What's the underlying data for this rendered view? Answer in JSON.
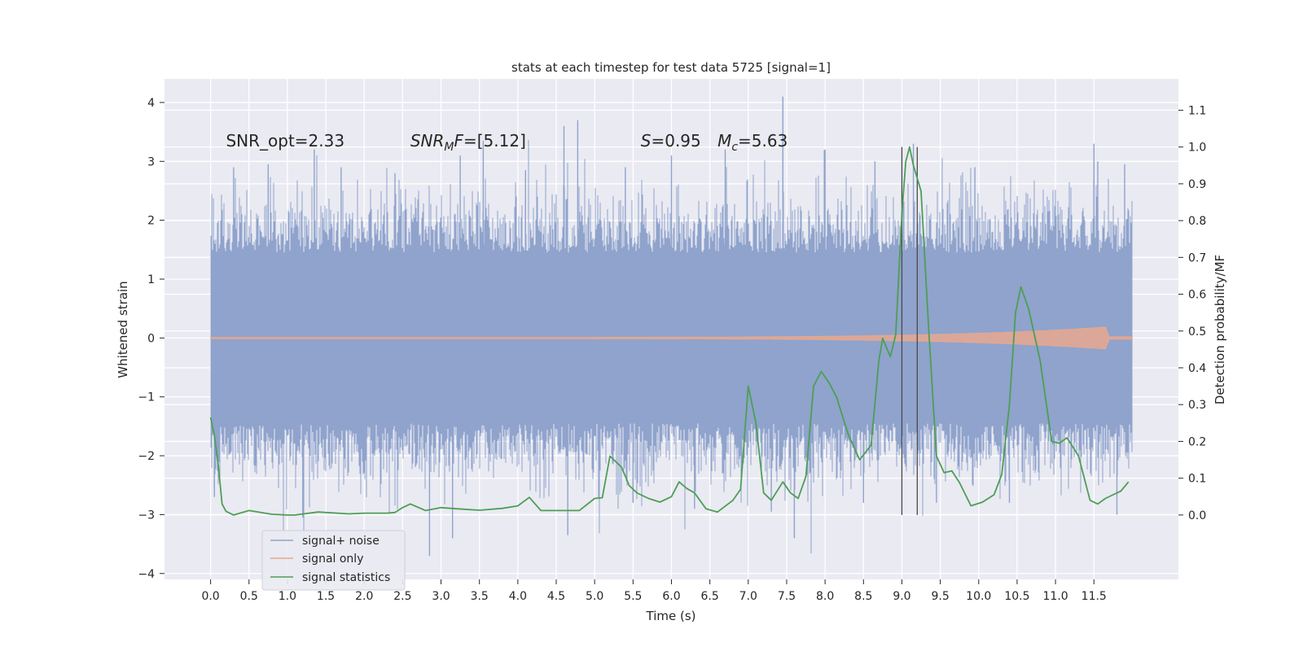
{
  "chart_data": {
    "type": "line",
    "title": "stats at each timestep for test data 5725 [signal=1]",
    "xlabel": "Time (s)",
    "ylabel": "Whitened strain",
    "y2label": "Detection probability/MF",
    "xlim": [
      -0.6,
      12.6
    ],
    "ylim": [
      -4.1,
      4.4
    ],
    "y2lim": [
      -0.175,
      1.185
    ],
    "xticks": [
      0.0,
      0.5,
      1.0,
      1.5,
      2.0,
      2.5,
      3.0,
      3.5,
      4.0,
      4.5,
      5.0,
      5.5,
      6.0,
      6.5,
      7.0,
      7.5,
      8.0,
      8.5,
      9.0,
      9.5,
      10.0,
      10.5,
      11.0,
      11.5
    ],
    "xtick_labels": [
      "0.0",
      "0.5",
      "1.0",
      "1.5",
      "2.0",
      "2.5",
      "3.0",
      "3.5",
      "4.0",
      "4.5",
      "5.0",
      "5.5",
      "6.0",
      "6.5",
      "7.0",
      "7.5",
      "8.0",
      "8.5",
      "9.0",
      "9.5",
      "10.0",
      "10.5",
      "11.0",
      "11.5"
    ],
    "yticks": [
      4,
      3,
      2,
      1,
      0,
      -1,
      -2,
      -3,
      -4
    ],
    "ytick_labels": [
      "4",
      "3",
      "2",
      "1",
      "0",
      "−1",
      "−2",
      "−3",
      "−4"
    ],
    "y2ticks": [
      1.1,
      1.0,
      0.9,
      0.8,
      0.7,
      0.6,
      0.5,
      0.4,
      0.3,
      0.2,
      0.1,
      0.0
    ],
    "y2tick_labels": [
      "1.1",
      "1.0",
      "0.9",
      "0.8",
      "0.7",
      "0.6",
      "0.5",
      "0.4",
      "0.3",
      "0.2",
      "0.1",
      "0.0"
    ],
    "annotations": [
      {
        "id": "snr-opt",
        "text": "SNR_opt=2.33",
        "x": 0.2,
        "y": 3.25
      },
      {
        "id": "snr-mf",
        "text": "SNR_MF=[5.12]",
        "x": 2.6,
        "y": 3.25
      },
      {
        "id": "s-value",
        "text": "S=0.95",
        "x": 5.6,
        "y": 3.25
      },
      {
        "id": "mc-value",
        "text": "M_c=5.63",
        "x": 6.6,
        "y": 3.25
      }
    ],
    "legend": {
      "position": "lower-left",
      "entries": [
        {
          "label": "signal+ noise",
          "color": "#8fa3cc"
        },
        {
          "label": "signal only",
          "color": "#e8a88e"
        },
        {
          "label": "signal statistics",
          "color": "#4d9e55"
        }
      ]
    },
    "vertical_lines_x": [
      9.0,
      9.2
    ],
    "series": [
      {
        "name": "signal+ noise",
        "color": "#8fa3cc",
        "x_range": [
          0.0,
          12.0
        ],
        "description": "whitened strain noise, core band about +/-1.4",
        "spikes": [
          {
            "x": 0.3,
            "y": 2.9
          },
          {
            "x": 0.75,
            "y": 2.95
          },
          {
            "x": 1.35,
            "y": 3.2
          },
          {
            "x": 1.7,
            "y": 2.9
          },
          {
            "x": 2.4,
            "y": 2.8
          },
          {
            "x": 3.25,
            "y": 3.1
          },
          {
            "x": 3.55,
            "y": 3.35
          },
          {
            "x": 4.1,
            "y": 2.85
          },
          {
            "x": 4.6,
            "y": 3.6
          },
          {
            "x": 4.78,
            "y": 3.7
          },
          {
            "x": 5.4,
            "y": 2.9
          },
          {
            "x": 6.0,
            "y": 3.1
          },
          {
            "x": 6.7,
            "y": 3.2
          },
          {
            "x": 7.45,
            "y": 4.1
          },
          {
            "x": 8.0,
            "y": 3.2
          },
          {
            "x": 8.65,
            "y": 3.0
          },
          {
            "x": 9.15,
            "y": 3.3
          },
          {
            "x": 9.95,
            "y": 2.9
          },
          {
            "x": 11.5,
            "y": 3.3
          },
          {
            "x": 11.55,
            "y": 3.0
          },
          {
            "x": 11.9,
            "y": 2.95
          },
          {
            "x": 0.05,
            "y": -2.7
          },
          {
            "x": 1.2,
            "y": -3.05
          },
          {
            "x": 2.85,
            "y": -3.7
          },
          {
            "x": 3.15,
            "y": -3.4
          },
          {
            "x": 4.65,
            "y": -3.35
          },
          {
            "x": 5.5,
            "y": -2.8
          },
          {
            "x": 6.3,
            "y": -2.9
          },
          {
            "x": 7.3,
            "y": -2.95
          },
          {
            "x": 7.6,
            "y": -3.4
          },
          {
            "x": 8.5,
            "y": -2.8
          },
          {
            "x": 9.45,
            "y": -2.8
          },
          {
            "x": 10.4,
            "y": -2.8
          },
          {
            "x": 11.8,
            "y": -3.0
          }
        ]
      },
      {
        "name": "signal only",
        "color": "#e8a88e",
        "x_range": [
          0.0,
          12.0
        ],
        "description": "chirp grows from 0 to about +/-0.25 amplitude near 11.6 s"
      },
      {
        "name": "signal statistics",
        "color": "#4d9e55",
        "axis": "right",
        "x": [
          0.0,
          0.05,
          0.1,
          0.15,
          0.2,
          0.3,
          0.5,
          0.8,
          1.0,
          1.1,
          1.4,
          1.8,
          2.0,
          2.3,
          2.4,
          2.5,
          2.6,
          2.8,
          3.0,
          3.2,
          3.5,
          3.8,
          4.0,
          4.15,
          4.3,
          4.6,
          4.8,
          5.0,
          5.1,
          5.2,
          5.35,
          5.45,
          5.55,
          5.7,
          5.85,
          6.0,
          6.1,
          6.2,
          6.3,
          6.45,
          6.6,
          6.8,
          6.9,
          7.0,
          7.1,
          7.2,
          7.3,
          7.45,
          7.55,
          7.65,
          7.75,
          7.85,
          7.95,
          8.05,
          8.15,
          8.3,
          8.45,
          8.6,
          8.7,
          8.75,
          8.8,
          8.85,
          8.92,
          9.0,
          9.05,
          9.1,
          9.15,
          9.25,
          9.35,
          9.45,
          9.55,
          9.65,
          9.75,
          9.9,
          10.05,
          10.2,
          10.3,
          10.4,
          10.48,
          10.55,
          10.65,
          10.8,
          10.95,
          11.05,
          11.15,
          11.3,
          11.45,
          11.55,
          11.65,
          11.75,
          11.85,
          11.95
        ],
        "values": [
          0.265,
          0.215,
          0.135,
          0.03,
          0.01,
          0.0,
          0.012,
          0.002,
          0.0,
          0.0,
          0.008,
          0.003,
          0.005,
          0.005,
          0.007,
          0.02,
          0.03,
          0.012,
          0.02,
          0.017,
          0.013,
          0.018,
          0.025,
          0.048,
          0.012,
          0.012,
          0.012,
          0.045,
          0.047,
          0.16,
          0.13,
          0.08,
          0.06,
          0.045,
          0.035,
          0.05,
          0.09,
          0.072,
          0.06,
          0.017,
          0.008,
          0.04,
          0.07,
          0.35,
          0.25,
          0.06,
          0.04,
          0.09,
          0.06,
          0.045,
          0.105,
          0.35,
          0.39,
          0.36,
          0.32,
          0.22,
          0.15,
          0.19,
          0.42,
          0.48,
          0.455,
          0.43,
          0.49,
          0.82,
          0.96,
          1.0,
          0.95,
          0.88,
          0.5,
          0.16,
          0.115,
          0.12,
          0.088,
          0.025,
          0.035,
          0.055,
          0.11,
          0.3,
          0.55,
          0.62,
          0.56,
          0.42,
          0.2,
          0.195,
          0.21,
          0.16,
          0.04,
          0.03,
          0.045,
          0.055,
          0.065,
          0.09
        ]
      }
    ]
  }
}
